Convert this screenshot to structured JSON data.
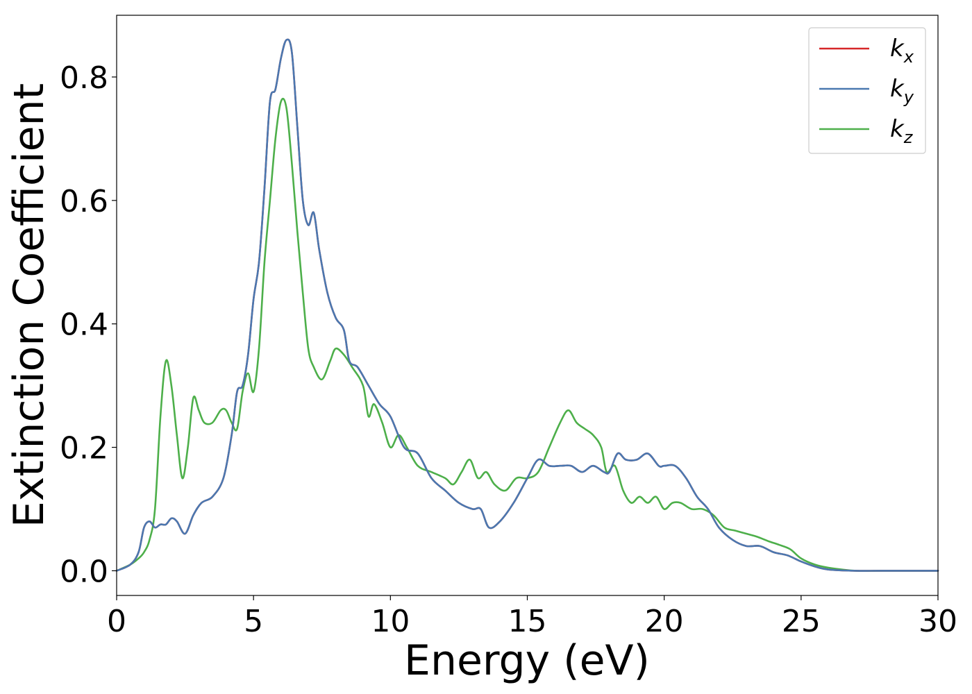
{
  "chart_data": {
    "type": "line",
    "xlabel": "Energy (eV)",
    "ylabel": "Extinction Coefficient",
    "xlim": [
      0,
      30
    ],
    "ylim": [
      -0.04,
      0.9
    ],
    "xticks": [
      0,
      5,
      10,
      15,
      20,
      25,
      30
    ],
    "yticks": [
      0.0,
      0.2,
      0.4,
      0.6,
      0.8
    ],
    "xtick_labels": [
      "0",
      "5",
      "10",
      "15",
      "20",
      "25",
      "30"
    ],
    "ytick_labels": [
      "0.0",
      "0.2",
      "0.4",
      "0.6",
      "0.8"
    ],
    "grid": false,
    "legend_position": "top-right",
    "series": [
      {
        "name": "k_x",
        "label_base": "k",
        "label_sub": "x",
        "color": "#d62728",
        "x": [
          0,
          0.5,
          0.8,
          1.0,
          1.2,
          1.4,
          1.6,
          1.8,
          2.0,
          2.2,
          2.5,
          2.8,
          3.1,
          3.5,
          3.9,
          4.2,
          4.4,
          4.6,
          4.8,
          5.0,
          5.2,
          5.4,
          5.6,
          5.8,
          6.0,
          6.2,
          6.4,
          6.6,
          6.8,
          7.0,
          7.2,
          7.4,
          7.7,
          8.0,
          8.3,
          8.5,
          8.8,
          9.2,
          9.6,
          10.0,
          10.5,
          11.0,
          11.5,
          12.0,
          12.5,
          13.0,
          13.3,
          13.6,
          14.0,
          14.5,
          15.0,
          15.4,
          15.8,
          16.2,
          16.6,
          17.0,
          17.4,
          17.8,
          18.0,
          18.3,
          18.6,
          19.0,
          19.4,
          19.8,
          20.0,
          20.4,
          20.8,
          21.2,
          21.6,
          22.0,
          22.5,
          23.0,
          23.5,
          24.0,
          24.5,
          25.0,
          25.5,
          26.0,
          27.0,
          28.0,
          30.0
        ],
        "y": [
          0.0,
          0.01,
          0.03,
          0.07,
          0.08,
          0.07,
          0.075,
          0.075,
          0.085,
          0.08,
          0.06,
          0.09,
          0.11,
          0.12,
          0.15,
          0.22,
          0.29,
          0.3,
          0.35,
          0.44,
          0.5,
          0.62,
          0.76,
          0.78,
          0.83,
          0.86,
          0.84,
          0.72,
          0.6,
          0.56,
          0.58,
          0.52,
          0.45,
          0.41,
          0.39,
          0.34,
          0.33,
          0.3,
          0.27,
          0.25,
          0.2,
          0.19,
          0.15,
          0.13,
          0.11,
          0.1,
          0.1,
          0.07,
          0.08,
          0.11,
          0.15,
          0.18,
          0.17,
          0.17,
          0.17,
          0.16,
          0.17,
          0.16,
          0.16,
          0.19,
          0.18,
          0.18,
          0.19,
          0.17,
          0.17,
          0.17,
          0.15,
          0.12,
          0.1,
          0.07,
          0.05,
          0.04,
          0.04,
          0.03,
          0.025,
          0.015,
          0.007,
          0.002,
          0.0,
          0.0,
          0.0
        ]
      },
      {
        "name": "k_y",
        "label_base": "k",
        "label_sub": "y",
        "color": "#4a78b0",
        "x": [
          0,
          0.5,
          0.8,
          1.0,
          1.2,
          1.4,
          1.6,
          1.8,
          2.0,
          2.2,
          2.5,
          2.8,
          3.1,
          3.5,
          3.9,
          4.2,
          4.4,
          4.6,
          4.8,
          5.0,
          5.2,
          5.4,
          5.6,
          5.8,
          6.0,
          6.2,
          6.4,
          6.6,
          6.8,
          7.0,
          7.2,
          7.4,
          7.7,
          8.0,
          8.3,
          8.5,
          8.8,
          9.2,
          9.6,
          10.0,
          10.5,
          11.0,
          11.5,
          12.0,
          12.5,
          13.0,
          13.3,
          13.6,
          14.0,
          14.5,
          15.0,
          15.4,
          15.8,
          16.2,
          16.6,
          17.0,
          17.4,
          17.8,
          18.0,
          18.3,
          18.6,
          19.0,
          19.4,
          19.8,
          20.0,
          20.4,
          20.8,
          21.2,
          21.6,
          22.0,
          22.5,
          23.0,
          23.5,
          24.0,
          24.5,
          25.0,
          25.5,
          26.0,
          27.0,
          28.0,
          30.0
        ],
        "y": [
          0.0,
          0.01,
          0.03,
          0.07,
          0.08,
          0.07,
          0.075,
          0.075,
          0.085,
          0.08,
          0.06,
          0.09,
          0.11,
          0.12,
          0.15,
          0.22,
          0.29,
          0.3,
          0.35,
          0.44,
          0.5,
          0.62,
          0.76,
          0.78,
          0.83,
          0.86,
          0.84,
          0.72,
          0.6,
          0.56,
          0.58,
          0.52,
          0.45,
          0.41,
          0.39,
          0.34,
          0.33,
          0.3,
          0.27,
          0.25,
          0.2,
          0.19,
          0.15,
          0.13,
          0.11,
          0.1,
          0.1,
          0.07,
          0.08,
          0.11,
          0.15,
          0.18,
          0.17,
          0.17,
          0.17,
          0.16,
          0.17,
          0.16,
          0.16,
          0.19,
          0.18,
          0.18,
          0.19,
          0.17,
          0.17,
          0.17,
          0.15,
          0.12,
          0.1,
          0.07,
          0.05,
          0.04,
          0.04,
          0.03,
          0.025,
          0.015,
          0.007,
          0.002,
          0.0,
          0.0,
          0.0
        ]
      },
      {
        "name": "k_z",
        "label_base": "k",
        "label_sub": "z",
        "color": "#4daf4a",
        "x": [
          0,
          0.5,
          0.8,
          1.0,
          1.2,
          1.4,
          1.6,
          1.8,
          2.0,
          2.2,
          2.4,
          2.6,
          2.8,
          3.0,
          3.2,
          3.5,
          3.8,
          4.0,
          4.2,
          4.4,
          4.6,
          4.8,
          5.0,
          5.2,
          5.4,
          5.6,
          5.8,
          6.0,
          6.2,
          6.4,
          6.6,
          6.8,
          7.0,
          7.2,
          7.5,
          7.8,
          8.0,
          8.3,
          8.6,
          9.0,
          9.2,
          9.4,
          9.7,
          10.0,
          10.3,
          10.6,
          11.0,
          11.5,
          12.0,
          12.3,
          12.6,
          12.9,
          13.2,
          13.5,
          13.8,
          14.2,
          14.6,
          15.0,
          15.4,
          15.8,
          16.2,
          16.5,
          16.8,
          17.1,
          17.4,
          17.7,
          17.9,
          18.2,
          18.5,
          18.8,
          19.1,
          19.4,
          19.7,
          20.0,
          20.3,
          20.6,
          21.0,
          21.4,
          21.8,
          22.2,
          22.6,
          23.0,
          23.4,
          23.8,
          24.2,
          24.6,
          25.0,
          25.5,
          26.0,
          27.0,
          28.0,
          30.0
        ],
        "y": [
          0.0,
          0.01,
          0.02,
          0.03,
          0.05,
          0.1,
          0.25,
          0.34,
          0.3,
          0.22,
          0.15,
          0.2,
          0.28,
          0.26,
          0.24,
          0.24,
          0.26,
          0.26,
          0.24,
          0.23,
          0.29,
          0.32,
          0.29,
          0.36,
          0.5,
          0.6,
          0.7,
          0.76,
          0.75,
          0.66,
          0.55,
          0.45,
          0.36,
          0.33,
          0.31,
          0.34,
          0.36,
          0.35,
          0.33,
          0.3,
          0.25,
          0.27,
          0.24,
          0.2,
          0.22,
          0.2,
          0.17,
          0.16,
          0.15,
          0.14,
          0.16,
          0.18,
          0.15,
          0.16,
          0.14,
          0.13,
          0.15,
          0.15,
          0.16,
          0.2,
          0.24,
          0.26,
          0.24,
          0.23,
          0.22,
          0.2,
          0.16,
          0.17,
          0.13,
          0.11,
          0.12,
          0.11,
          0.12,
          0.1,
          0.11,
          0.11,
          0.1,
          0.1,
          0.09,
          0.07,
          0.065,
          0.06,
          0.055,
          0.048,
          0.042,
          0.035,
          0.02,
          0.01,
          0.005,
          0.0,
          0.0,
          0.0
        ]
      }
    ]
  }
}
